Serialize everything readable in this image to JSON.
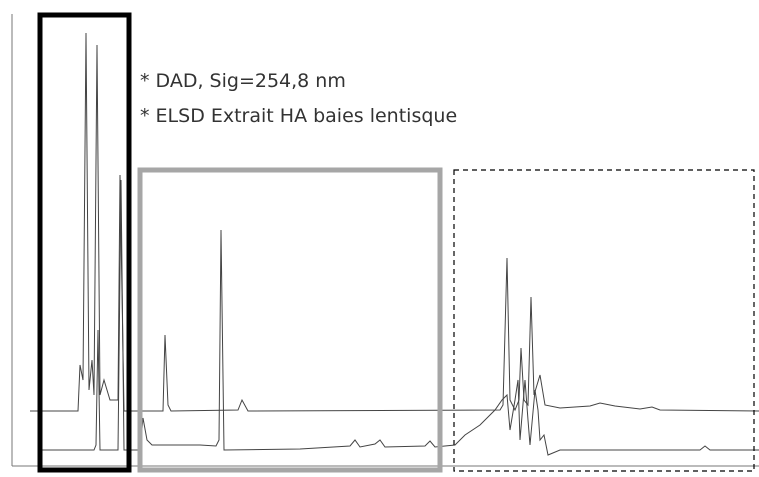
{
  "legend": {
    "items": [
      "* DAD, Sig=254,8 nm",
      "* ELSD Extrait HA baies lentisque"
    ]
  }
}
